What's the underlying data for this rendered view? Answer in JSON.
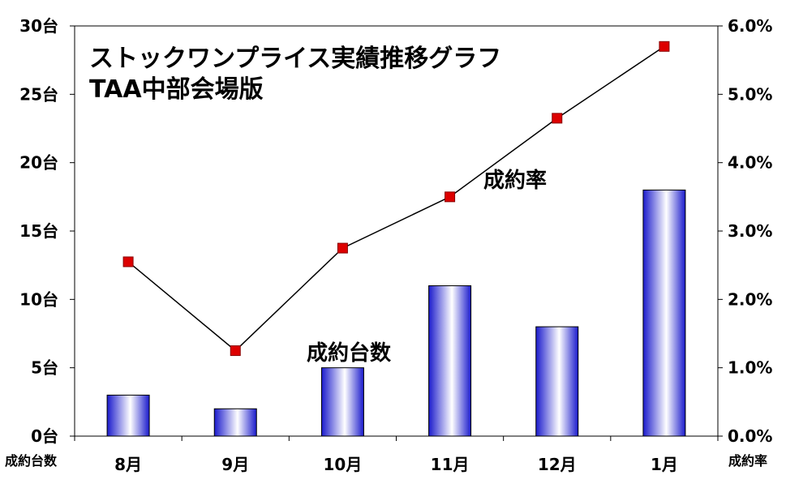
{
  "chart_data": {
    "type": "bar",
    "title": "ストックワンプライス実績推移グラフ",
    "subtitle": "TAA中部会場版",
    "categories": [
      "8月",
      "9月",
      "10月",
      "11月",
      "12月",
      "1月"
    ],
    "series": [
      {
        "name": "成約台数",
        "type": "bar",
        "axis": "left",
        "values": [
          3,
          2,
          5,
          11,
          8,
          18
        ]
      },
      {
        "name": "成約率",
        "type": "line",
        "axis": "right",
        "values": [
          2.55,
          1.25,
          2.75,
          3.5,
          4.65,
          5.7
        ]
      }
    ],
    "y_left": {
      "label": "成約台数",
      "range": [
        0,
        30
      ],
      "ticks": [
        0,
        5,
        10,
        15,
        20,
        25,
        30
      ],
      "tick_labels": [
        "0台",
        "5台",
        "10台",
        "15台",
        "20台",
        "25台",
        "30台"
      ]
    },
    "y_right": {
      "label": "成約率",
      "range": [
        0,
        6
      ],
      "ticks": [
        0,
        1,
        2,
        3,
        4,
        5,
        6
      ],
      "tick_labels": [
        "0.0%",
        "1.0%",
        "2.0%",
        "3.0%",
        "4.0%",
        "5.0%",
        "6.0%"
      ]
    },
    "grid": false,
    "legend": "none",
    "colors": {
      "bar_dark": "#1a1acc",
      "bar_light": "#ffffff",
      "line": "#000000",
      "marker": "#dd0000"
    }
  }
}
